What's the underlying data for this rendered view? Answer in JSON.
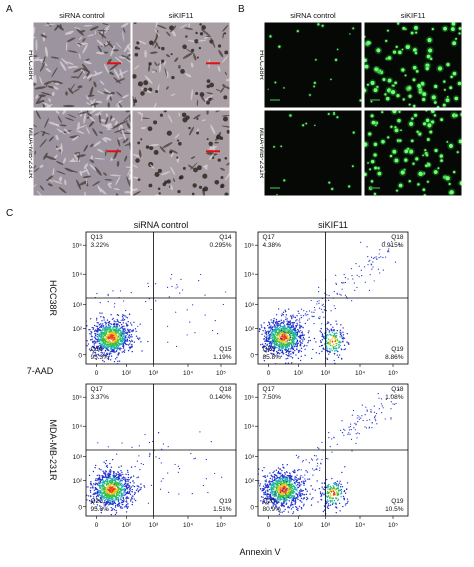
{
  "panel_a": {
    "label": "A",
    "columns": [
      "siRNA control",
      "siKIF11"
    ],
    "rows": [
      "HCC38R",
      "MDA-MB-231R"
    ]
  },
  "panel_b": {
    "label": "B",
    "columns": [
      "siRNA control",
      "siKIF11"
    ],
    "rows": [
      "HCC38R",
      "MDA-MB-231R"
    ]
  },
  "panel_c": {
    "label": "C",
    "columns": [
      "siRNA control",
      "siKIF11"
    ],
    "rows": [
      "HCC38R",
      "MDA-MB-231R"
    ],
    "y_axis_label": "7-AAD",
    "x_axis_label": "Annexin V",
    "ticks": [
      "0",
      "10²",
      "10³",
      "10⁴",
      "10⁵"
    ],
    "plots": [
      {
        "quadrants": [
          {
            "name": "Q13",
            "percent": "3.22%"
          },
          {
            "name": "Q14",
            "percent": "0.295%"
          },
          {
            "name": "Q16",
            "percent": "95.3%"
          },
          {
            "name": "Q15",
            "percent": "1.19%"
          }
        ]
      },
      {
        "quadrants": [
          {
            "name": "Q17",
            "percent": "4.38%"
          },
          {
            "name": "Q18",
            "percent": "0.915%"
          },
          {
            "name": "Q20",
            "percent": "85.8%"
          },
          {
            "name": "Q19",
            "percent": "8.86%"
          }
        ]
      },
      {
        "quadrants": [
          {
            "name": "Q17",
            "percent": "3.37%"
          },
          {
            "name": "Q18",
            "percent": "0.140%"
          },
          {
            "name": "Q20",
            "percent": "95.0%"
          },
          {
            "name": "Q19",
            "percent": "1.51%"
          }
        ]
      },
      {
        "quadrants": [
          {
            "name": "Q17",
            "percent": "7.50%"
          },
          {
            "name": "Q18",
            "percent": "1.08%"
          },
          {
            "name": "Q20",
            "percent": "80.9%"
          },
          {
            "name": "Q19",
            "percent": "10.5%"
          }
        ]
      }
    ]
  }
}
